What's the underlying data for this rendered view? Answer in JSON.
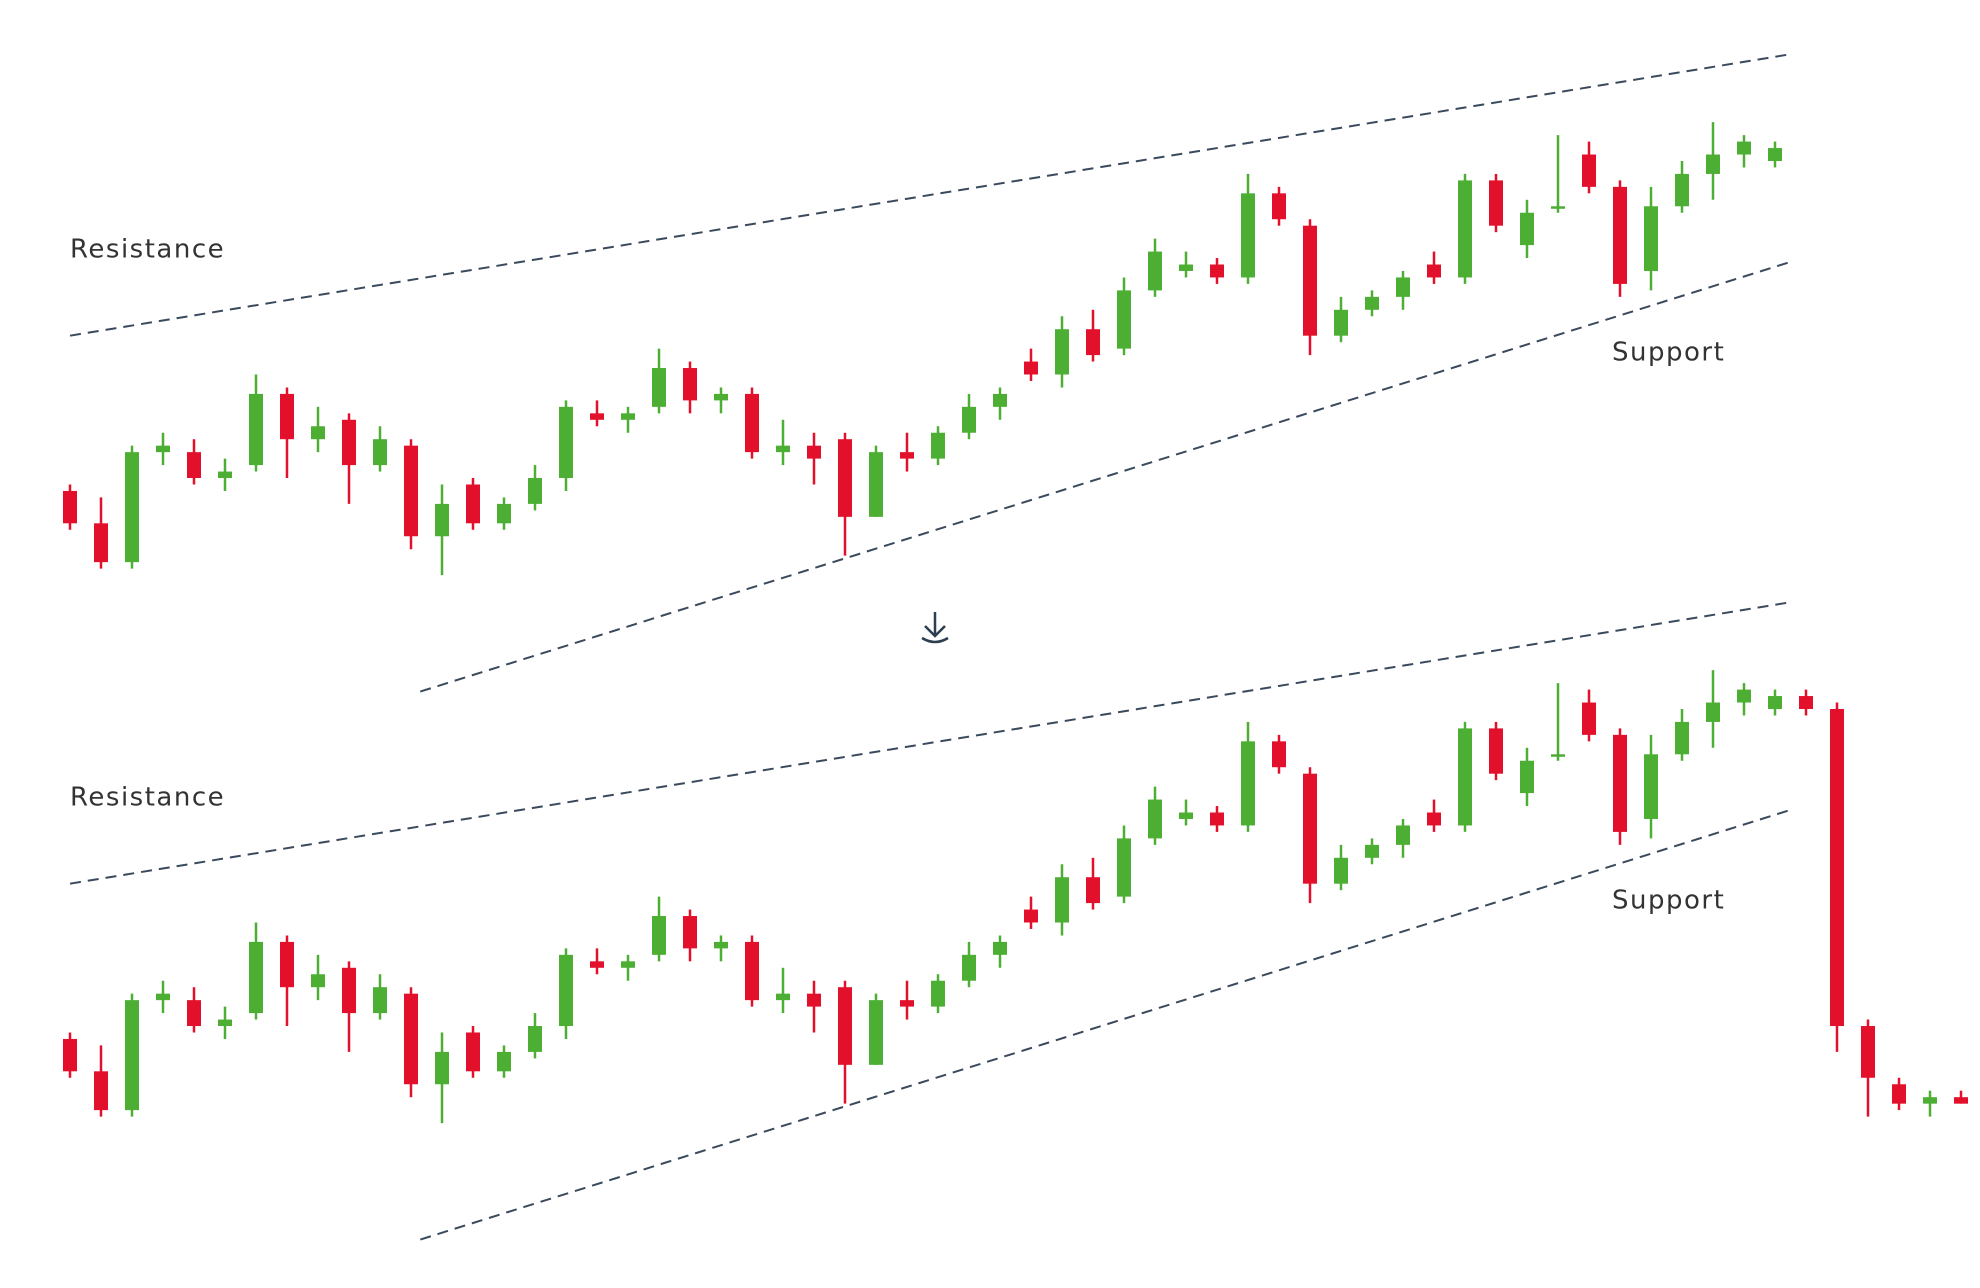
{
  "chart_data": [
    {
      "type": "candlestick",
      "up_color": "#4caf33",
      "down_color": "#e3102b",
      "ylim": [
        0,
        100
      ],
      "open": [
        32,
        27,
        21,
        38,
        38,
        34,
        36,
        47,
        40,
        43,
        36,
        39,
        25,
        33,
        27,
        30,
        34,
        44,
        43,
        45,
        51,
        46,
        47,
        38,
        39,
        40,
        28,
        38,
        37,
        41,
        45,
        52,
        50,
        57,
        54,
        63,
        66,
        67,
        65,
        78,
        73,
        56,
        60,
        62,
        67,
        65,
        80,
        70,
        76,
        84,
        79,
        66,
        76,
        81,
        84,
        83
      ],
      "high": [
        33,
        31,
        39,
        41,
        40,
        37,
        50,
        48,
        45,
        44,
        42,
        40,
        33,
        34,
        31,
        36,
        46,
        46,
        45,
        54,
        52,
        48,
        48,
        43,
        41,
        41,
        39,
        41,
        42,
        47,
        48,
        54,
        59,
        60,
        65,
        71,
        69,
        68,
        81,
        79,
        74,
        62,
        63,
        66,
        69,
        81,
        81,
        77,
        87,
        86,
        80,
        79,
        83,
        89,
        87,
        86
      ],
      "low": [
        26,
        20,
        20,
        36,
        33,
        32,
        35,
        34,
        38,
        30,
        35,
        23,
        19,
        26,
        26,
        29,
        32,
        42,
        41,
        44,
        44,
        44,
        37,
        36,
        33,
        22,
        28,
        35,
        36,
        40,
        43,
        49,
        48,
        52,
        53,
        62,
        65,
        64,
        64,
        73,
        53,
        55,
        59,
        60,
        64,
        64,
        72,
        68,
        75,
        78,
        62,
        63,
        75,
        77,
        82,
        82
      ],
      "close": [
        27,
        21,
        38,
        39,
        34,
        35,
        47,
        40,
        42,
        36,
        40,
        25,
        30,
        27,
        30,
        34,
        45,
        43,
        44,
        51,
        46,
        47,
        38,
        39,
        37,
        28,
        38,
        37,
        41,
        45,
        47,
        50,
        57,
        53,
        63,
        69,
        67,
        65,
        78,
        74,
        56,
        60,
        62,
        65,
        65,
        80,
        73,
        75,
        76,
        79,
        64,
        76,
        81,
        84,
        86,
        85
      ],
      "trendlines": [
        {
          "label": "Resistance",
          "x": [
            0,
            55.5
          ],
          "y": [
            56,
            99.5
          ]
        },
        {
          "label": "Support",
          "x": [
            11.3,
            55.5
          ],
          "y": [
            1,
            67.4
          ]
        }
      ]
    },
    {
      "type": "candlestick",
      "up_color": "#4caf33",
      "down_color": "#e3102b",
      "ylim": [
        0,
        100
      ],
      "open": [
        32,
        27,
        21,
        38,
        38,
        34,
        36,
        47,
        40,
        43,
        36,
        39,
        25,
        33,
        27,
        30,
        34,
        44,
        43,
        45,
        51,
        46,
        47,
        38,
        39,
        40,
        28,
        38,
        37,
        41,
        45,
        52,
        50,
        57,
        54,
        63,
        66,
        67,
        65,
        78,
        73,
        56,
        60,
        62,
        67,
        65,
        80,
        70,
        76,
        84,
        79,
        66,
        76,
        81,
        84,
        83,
        85,
        83,
        34,
        25,
        22,
        23
      ],
      "high": [
        33,
        31,
        39,
        41,
        40,
        37,
        50,
        48,
        45,
        44,
        42,
        40,
        33,
        34,
        31,
        36,
        46,
        46,
        45,
        54,
        52,
        48,
        48,
        43,
        41,
        41,
        39,
        41,
        42,
        47,
        48,
        54,
        59,
        60,
        65,
        71,
        69,
        68,
        81,
        79,
        74,
        62,
        63,
        66,
        69,
        81,
        81,
        77,
        87,
        86,
        80,
        79,
        83,
        89,
        87,
        86,
        86,
        84,
        35,
        26,
        24,
        24
      ],
      "low": [
        26,
        20,
        20,
        36,
        33,
        32,
        35,
        34,
        38,
        30,
        35,
        23,
        19,
        26,
        26,
        29,
        32,
        42,
        41,
        44,
        44,
        44,
        37,
        36,
        33,
        22,
        28,
        35,
        36,
        40,
        43,
        49,
        48,
        52,
        53,
        62,
        65,
        64,
        64,
        73,
        53,
        55,
        59,
        60,
        64,
        64,
        72,
        68,
        75,
        78,
        62,
        63,
        75,
        77,
        82,
        82,
        82,
        30,
        20,
        21,
        20,
        22
      ],
      "close": [
        27,
        21,
        38,
        39,
        34,
        35,
        47,
        40,
        42,
        36,
        40,
        25,
        30,
        27,
        30,
        34,
        45,
        43,
        44,
        51,
        46,
        47,
        38,
        39,
        37,
        28,
        38,
        37,
        41,
        45,
        47,
        50,
        57,
        53,
        63,
        69,
        67,
        65,
        78,
        74,
        56,
        60,
        62,
        65,
        65,
        80,
        73,
        75,
        76,
        79,
        64,
        76,
        81,
        84,
        86,
        85,
        83,
        34,
        26,
        22,
        23,
        22
      ],
      "trendlines": [
        {
          "label": "Resistance",
          "x": [
            0,
            55.5
          ],
          "y": [
            56,
            99.5
          ]
        },
        {
          "label": "Support",
          "x": [
            11.3,
            55.5
          ],
          "y": [
            1,
            67.4
          ]
        }
      ]
    }
  ]
}
